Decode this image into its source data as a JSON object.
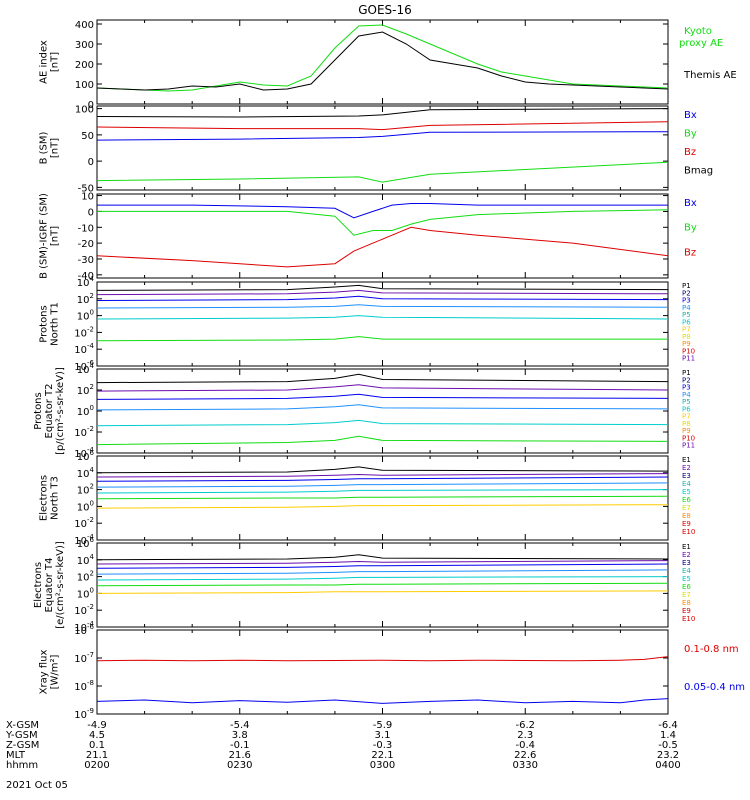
{
  "title": "GOES-16",
  "colors": {
    "black": "#000000",
    "green": "#11dd11",
    "blue": "#0000ee",
    "red": "#dd0000",
    "purple": "#6a0dad",
    "cyan": "#00cccc",
    "dodger": "#1e90ff",
    "yellow": "#dddd00",
    "orange": "#ff8c00",
    "navy": "#00007f",
    "teal": "#20b2aa",
    "gold": "#ffcc00"
  },
  "footer": {
    "rows": [
      {
        "label": "X-GSM",
        "values": [
          "-4.9",
          "-5.4",
          "-5.9",
          "-6.2",
          "-6.4"
        ]
      },
      {
        "label": "Y-GSM",
        "values": [
          "4.5",
          "3.8",
          "3.1",
          "2.3",
          "1.4"
        ]
      },
      {
        "label": "Z-GSM",
        "values": [
          "0.1",
          "-0.1",
          "-0.3",
          "-0.4",
          "-0.5"
        ]
      },
      {
        "label": "MLT",
        "values": [
          "21.1",
          "21.6",
          "22.1",
          "22.6",
          "23.2"
        ]
      },
      {
        "label": "hhmm",
        "values": [
          "0200",
          "0230",
          "0300",
          "0330",
          "0400"
        ]
      }
    ],
    "date": "2021 Oct 05"
  },
  "chart_data": [
    {
      "id": "ae",
      "type": "line",
      "ylabel": "AE index\n[nT]",
      "ylim": [
        0,
        420
      ],
      "yticks": [
        "0",
        "100",
        "200",
        "300",
        "400"
      ],
      "ytick_values": [
        0,
        100,
        200,
        300,
        400
      ],
      "x": [
        0,
        5,
        10,
        15,
        20,
        25,
        30,
        35,
        40,
        45,
        50,
        55,
        60,
        65,
        70,
        75,
        80,
        85,
        90,
        95,
        100,
        105,
        110,
        115,
        120
      ],
      "series": [
        {
          "name": "Kyoto proxy AE",
          "color_key": "green",
          "values": [
            80,
            75,
            70,
            65,
            70,
            90,
            110,
            95,
            90,
            140,
            280,
            390,
            395,
            350,
            300,
            250,
            200,
            160,
            140,
            120,
            100,
            95,
            90,
            85,
            80
          ]
        },
        {
          "name": "Themis AE",
          "color_key": "black",
          "values": [
            80,
            75,
            70,
            75,
            90,
            85,
            100,
            70,
            75,
            100,
            220,
            340,
            360,
            300,
            220,
            200,
            180,
            140,
            110,
            100,
            95,
            90,
            85,
            80,
            75
          ]
        }
      ]
    },
    {
      "id": "bsm",
      "type": "line",
      "ylabel": "B (SM)\n[nT]",
      "ylim": [
        -55,
        105
      ],
      "yticks": [
        "100",
        "50",
        "0",
        "-50"
      ],
      "ytick_values": [
        100,
        50,
        0,
        -50
      ],
      "x": [
        0,
        30,
        55,
        60,
        70,
        120
      ],
      "series": [
        {
          "name": "Bx",
          "color_key": "blue",
          "values": [
            40,
            42,
            45,
            47,
            55,
            56
          ]
        },
        {
          "name": "By",
          "color_key": "green",
          "values": [
            -37,
            -34,
            -30,
            -40,
            -25,
            -2
          ]
        },
        {
          "name": "Bz",
          "color_key": "red",
          "values": [
            65,
            62,
            62,
            60,
            68,
            75
          ]
        },
        {
          "name": "Bmag",
          "color_key": "black",
          "values": [
            85,
            84,
            86,
            88,
            98,
            100
          ]
        }
      ]
    },
    {
      "id": "bigrf",
      "type": "line",
      "ylabel": "B (SM)-IGRF (SM)\n[nT]",
      "ylim": [
        -42,
        11
      ],
      "yticks": [
        "10",
        "0",
        "-10",
        "-20",
        "-30",
        "-40"
      ],
      "ytick_values": [
        10,
        0,
        -10,
        -20,
        -30,
        -40
      ],
      "x": [
        0,
        20,
        40,
        50,
        54,
        58,
        62,
        66,
        70,
        80,
        100,
        120
      ],
      "series": [
        {
          "name": "Bx",
          "color_key": "blue",
          "values": [
            4,
            4,
            3,
            2,
            -4,
            0,
            4,
            5,
            5,
            4,
            4,
            4
          ]
        },
        {
          "name": "By",
          "color_key": "green",
          "values": [
            0,
            0,
            0,
            -3,
            -15,
            -12,
            -12,
            -8,
            -5,
            -2,
            0,
            1
          ]
        },
        {
          "name": "Bz",
          "color_key": "red",
          "values": [
            -28,
            -31,
            -35,
            -33,
            -25,
            -20,
            -15,
            -10,
            -12,
            -15,
            -20,
            -28
          ]
        }
      ]
    },
    {
      "id": "pnt1",
      "type": "line",
      "ylabel": "Protons\nNorth T1",
      "log": true,
      "ylim": [
        -6,
        4
      ],
      "yticks": [
        "10^4",
        "10^2",
        "10^0",
        "10^-2",
        "10^-4",
        "10^-6"
      ],
      "ytick_values": [
        4,
        2,
        0,
        -2,
        -4,
        -6
      ],
      "legend": [
        "P1",
        "P2",
        "P3",
        "P4",
        "P5",
        "P6",
        "P7",
        "P8",
        "P9",
        "P10",
        "P11"
      ],
      "legend_colors": [
        "black",
        "navy",
        "blue",
        "dodger",
        "teal",
        "cyan",
        "gold",
        "yellow",
        "orange",
        "red",
        "purple"
      ],
      "x": [
        0,
        40,
        50,
        55,
        60,
        120
      ],
      "series": [
        {
          "name": "P1",
          "color_key": "black",
          "values": [
            3.0,
            3.1,
            3.4,
            3.6,
            3.2,
            3.1
          ]
        },
        {
          "name": "P2",
          "color_key": "purple",
          "values": [
            2.5,
            2.6,
            2.8,
            3.0,
            2.7,
            2.6
          ]
        },
        {
          "name": "P3",
          "color_key": "blue",
          "values": [
            1.8,
            1.9,
            2.1,
            2.3,
            2.0,
            1.9
          ]
        },
        {
          "name": "P4",
          "color_key": "dodger",
          "values": [
            0.9,
            1.0,
            1.1,
            1.3,
            1.1,
            1.0
          ]
        },
        {
          "name": "P5",
          "color_key": "cyan",
          "values": [
            -0.4,
            -0.3,
            -0.2,
            0.0,
            -0.2,
            -0.4
          ]
        },
        {
          "name": "P6",
          "color_key": "green",
          "values": [
            -3.0,
            -2.9,
            -2.8,
            -2.5,
            -2.8,
            -2.8
          ]
        }
      ]
    },
    {
      "id": "pet2",
      "type": "line",
      "ylabel": "Protons\nEquator T2\n[p/(cm²-s-sr-keV)]",
      "log": true,
      "ylim": [
        -4,
        4
      ],
      "yticks": [
        "10^4",
        "10^2",
        "10^0",
        "10^-2",
        "10^-4"
      ],
      "ytick_values": [
        4,
        2,
        0,
        -2,
        -4
      ],
      "legend": [
        "P1",
        "P2",
        "P3",
        "P4",
        "P5",
        "P6",
        "P7",
        "P8",
        "P9",
        "P10",
        "P11"
      ],
      "legend_colors": [
        "black",
        "navy",
        "blue",
        "dodger",
        "teal",
        "cyan",
        "gold",
        "yellow",
        "orange",
        "red",
        "purple"
      ],
      "x": [
        0,
        40,
        50,
        55,
        60,
        120
      ],
      "series": [
        {
          "name": "P1",
          "color_key": "black",
          "values": [
            2.7,
            2.8,
            3.1,
            3.5,
            3.0,
            2.8
          ]
        },
        {
          "name": "P2",
          "color_key": "purple",
          "values": [
            1.9,
            2.0,
            2.3,
            2.5,
            2.2,
            2.0
          ]
        },
        {
          "name": "P3",
          "color_key": "blue",
          "values": [
            1.1,
            1.2,
            1.4,
            1.6,
            1.3,
            1.2
          ]
        },
        {
          "name": "P4",
          "color_key": "dodger",
          "values": [
            0.1,
            0.2,
            0.4,
            0.6,
            0.3,
            0.2
          ]
        },
        {
          "name": "P5",
          "color_key": "cyan",
          "values": [
            -1.4,
            -1.3,
            -1.1,
            -0.9,
            -1.2,
            -1.3
          ]
        },
        {
          "name": "P6",
          "color_key": "green",
          "values": [
            -3.2,
            -3.0,
            -2.8,
            -2.4,
            -2.8,
            -2.9
          ]
        }
      ]
    },
    {
      "id": "ent3",
      "type": "line",
      "ylabel": "Electrons\nNorth T3",
      "log": true,
      "ylim": [
        -4,
        6
      ],
      "yticks": [
        "10^6",
        "10^4",
        "10^2",
        "10^0",
        "10^-2",
        "10^-4"
      ],
      "ytick_values": [
        6,
        4,
        2,
        0,
        -2,
        -4
      ],
      "legend": [
        "E1",
        "E2",
        "E3",
        "E4",
        "E5",
        "E6",
        "E7",
        "E8",
        "E9",
        "E10"
      ],
      "legend_colors": [
        "black",
        "purple",
        "navy",
        "teal",
        "cyan",
        "green",
        "yellow",
        "orange",
        "red",
        "red"
      ],
      "x": [
        0,
        40,
        50,
        55,
        60,
        120
      ],
      "series": [
        {
          "name": "E1",
          "color_key": "black",
          "values": [
            4.0,
            4.1,
            4.4,
            4.7,
            4.3,
            4.2
          ]
        },
        {
          "name": "E2",
          "color_key": "purple",
          "values": [
            3.5,
            3.6,
            3.7,
            3.8,
            3.7,
            3.9
          ]
        },
        {
          "name": "E3",
          "color_key": "blue",
          "values": [
            3.0,
            3.1,
            3.2,
            3.3,
            3.3,
            3.5
          ]
        },
        {
          "name": "E4",
          "color_key": "dodger",
          "values": [
            2.3,
            2.4,
            2.5,
            2.6,
            2.6,
            2.8
          ]
        },
        {
          "name": "E5",
          "color_key": "cyan",
          "values": [
            1.6,
            1.7,
            1.8,
            1.9,
            1.9,
            2.0
          ]
        },
        {
          "name": "E6",
          "color_key": "green",
          "values": [
            0.9,
            1.0,
            1.0,
            1.1,
            1.1,
            1.2
          ]
        },
        {
          "name": "E7",
          "color_key": "gold",
          "values": [
            -0.2,
            -0.1,
            0.0,
            0.1,
            0.1,
            0.2
          ]
        }
      ]
    },
    {
      "id": "eet4",
      "type": "line",
      "ylabel": "Electrons\nEquator T4\n[e/(cm²-s-sr-keV)]",
      "log": true,
      "ylim": [
        -4,
        6
      ],
      "yticks": [
        "10^6",
        "10^4",
        "10^2",
        "10^0",
        "10^-2",
        "10^-4"
      ],
      "ytick_values": [
        6,
        4,
        2,
        0,
        -2,
        -4
      ],
      "legend": [
        "E1",
        "E2",
        "E3",
        "E4",
        "E5",
        "E6",
        "E7",
        "E8",
        "E9",
        "E10"
      ],
      "legend_colors": [
        "black",
        "purple",
        "navy",
        "teal",
        "cyan",
        "green",
        "yellow",
        "orange",
        "red",
        "red"
      ],
      "x": [
        0,
        40,
        50,
        55,
        60,
        120
      ],
      "series": [
        {
          "name": "E1",
          "color_key": "black",
          "values": [
            4.0,
            4.1,
            4.3,
            4.6,
            4.2,
            4.1
          ]
        },
        {
          "name": "E2",
          "color_key": "purple",
          "values": [
            3.5,
            3.6,
            3.7,
            3.8,
            3.7,
            3.9
          ]
        },
        {
          "name": "E3",
          "color_key": "blue",
          "values": [
            3.0,
            3.1,
            3.2,
            3.3,
            3.3,
            3.5
          ]
        },
        {
          "name": "E4",
          "color_key": "dodger",
          "values": [
            2.3,
            2.4,
            2.5,
            2.6,
            2.6,
            2.8
          ]
        },
        {
          "name": "E5",
          "color_key": "cyan",
          "values": [
            1.6,
            1.7,
            1.8,
            1.9,
            1.9,
            2.0
          ]
        },
        {
          "name": "E6",
          "color_key": "green",
          "values": [
            0.9,
            1.0,
            1.0,
            1.1,
            1.1,
            1.2
          ]
        },
        {
          "name": "E7",
          "color_key": "gold",
          "values": [
            0.0,
            0.1,
            0.2,
            0.2,
            0.2,
            0.3
          ]
        }
      ]
    },
    {
      "id": "xray",
      "type": "line",
      "ylabel": "Xray flux\n[W/m²]",
      "log": true,
      "ylim": [
        -9,
        -6
      ],
      "yticks": [
        "10^-6",
        "10^-7",
        "10^-8",
        "10^-9"
      ],
      "ytick_values": [
        -6,
        -7,
        -8,
        -9
      ],
      "x": [
        0,
        10,
        20,
        30,
        40,
        50,
        60,
        70,
        80,
        90,
        100,
        110,
        115,
        120
      ],
      "series": [
        {
          "name": "0.1-0.8 nm",
          "color_key": "red",
          "values": [
            -7.1,
            -7.08,
            -7.1,
            -7.08,
            -7.1,
            -7.09,
            -7.08,
            -7.1,
            -7.08,
            -7.09,
            -7.1,
            -7.08,
            -7.05,
            -6.95
          ]
        },
        {
          "name": "0.05-0.4 nm",
          "color_key": "blue",
          "values": [
            -8.55,
            -8.5,
            -8.6,
            -8.52,
            -8.58,
            -8.5,
            -8.62,
            -8.55,
            -8.5,
            -8.6,
            -8.55,
            -8.6,
            -8.5,
            -8.45
          ]
        }
      ]
    }
  ]
}
